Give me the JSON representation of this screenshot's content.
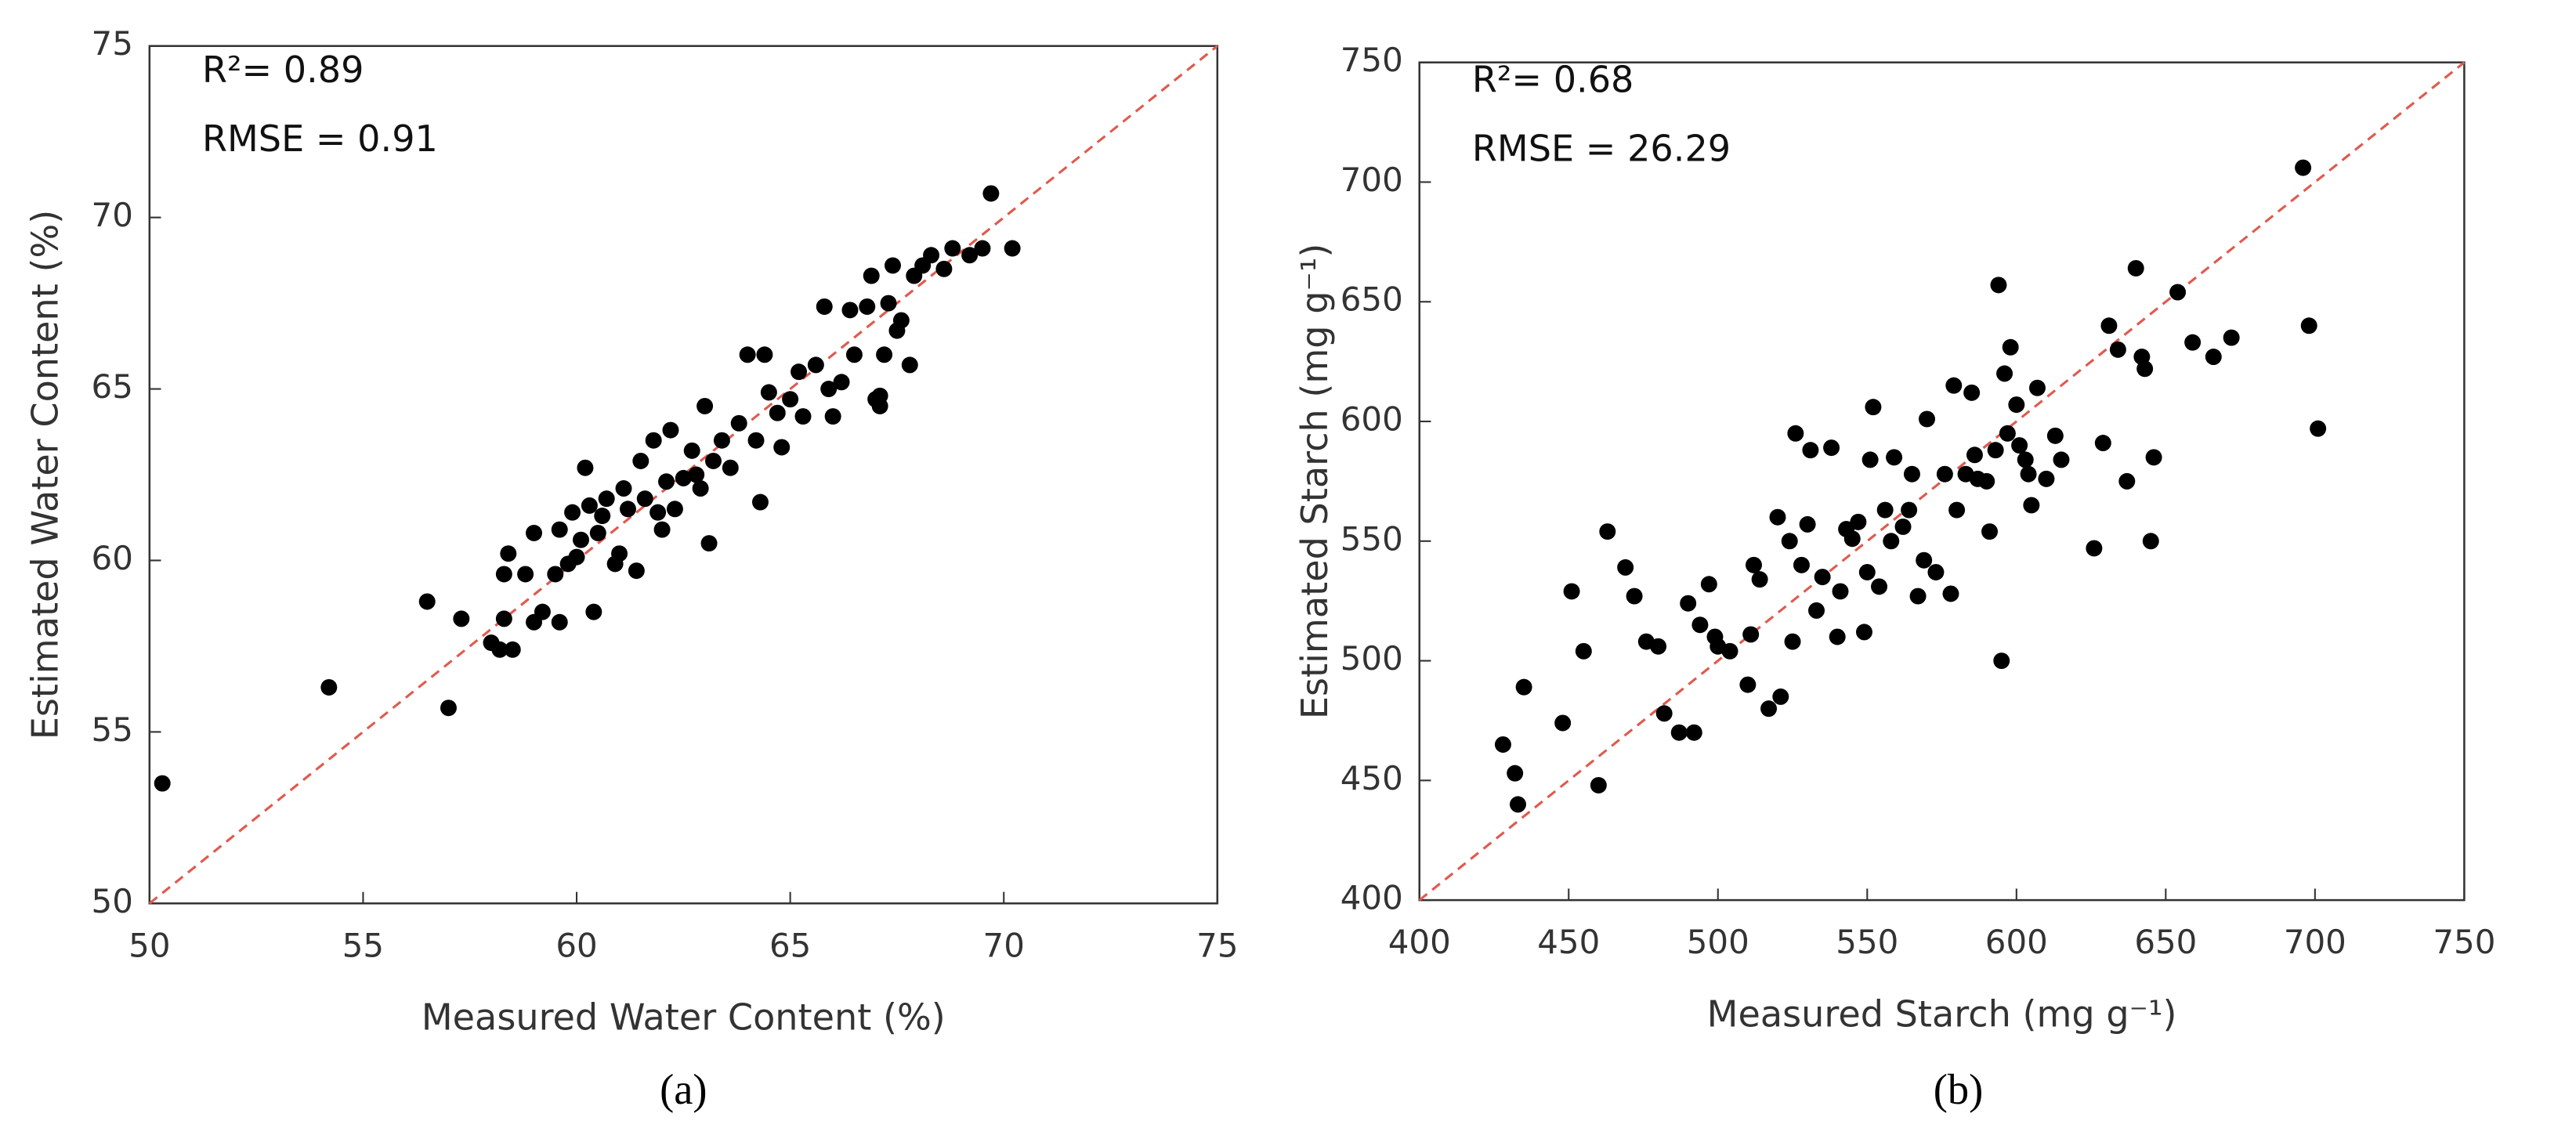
{
  "chart_data": [
    {
      "type": "scatter",
      "caption": "(a)",
      "xlabel": "Measured Water Content (%)",
      "ylabel": "Estimated Water Content (%)",
      "annotations": [
        "R²= 0.89",
        "RMSE = 0.91"
      ],
      "xlim": [
        50,
        75
      ],
      "ylim": [
        50,
        75
      ],
      "xticks": [
        50,
        55,
        60,
        65,
        70,
        75
      ],
      "yticks": [
        50,
        55,
        60,
        65,
        70,
        75
      ],
      "color": "#000000",
      "line_color": "#e05a4f",
      "x": [
        50.3,
        54.2,
        56.5,
        57,
        57.3,
        58,
        58.2,
        58.3,
        58.4,
        58.5,
        58.3,
        58.8,
        59,
        59,
        59.2,
        59.5,
        59.6,
        59.6,
        59.8,
        59.9,
        60,
        60.1,
        60.2,
        60.3,
        60.4,
        60.5,
        60.6,
        60.7,
        60.9,
        61,
        61.1,
        61.2,
        61.4,
        61.5,
        61.6,
        61.8,
        62,
        62.1,
        62.2,
        62.3,
        62.5,
        62.7,
        62.9,
        63,
        63.1,
        63.2,
        63.4,
        63.6,
        63.8,
        64,
        64.2,
        64.3,
        64.4,
        64.5,
        64.7,
        64.8,
        65,
        65.2,
        65.3,
        65.6,
        65.8,
        65.9,
        66,
        66.2,
        66.4,
        66.5,
        66.8,
        66.9,
        67,
        67.1,
        67.2,
        67.3,
        67.4,
        67.5,
        67.6,
        67.8,
        67.9,
        68.1,
        68.3,
        68.6,
        68.8,
        69.2,
        69.5,
        69.7,
        70.2,
        67.1,
        62.8,
        61.9
      ],
      "values": [
        53.5,
        56.3,
        58.8,
        55.7,
        58.3,
        57.6,
        57.4,
        59.6,
        60.2,
        57.4,
        58.3,
        59.6,
        60.8,
        58.2,
        58.5,
        59.6,
        58.2,
        60.9,
        59.9,
        61.4,
        60.1,
        60.6,
        62.7,
        61.6,
        58.5,
        60.8,
        61.3,
        61.8,
        59.9,
        60.2,
        62.1,
        61.5,
        59.7,
        62.9,
        61.8,
        63.5,
        60.9,
        62.3,
        63.8,
        61.5,
        62.4,
        63.2,
        62.1,
        64.5,
        60.5,
        62.9,
        63.5,
        62.7,
        64,
        66,
        63.5,
        61.7,
        66,
        64.9,
        64.3,
        63.3,
        64.7,
        65.5,
        64.2,
        65.7,
        67.4,
        65,
        64.2,
        65.2,
        67.3,
        66,
        67.4,
        68.3,
        64.7,
        64.5,
        66,
        67.5,
        68.6,
        66.7,
        67,
        65.7,
        68.3,
        68.6,
        68.9,
        68.5,
        69.1,
        68.9,
        69.1,
        70.7,
        69.1,
        64.8,
        62.5,
        61.4
      ]
    },
    {
      "type": "scatter",
      "caption": "(b)",
      "xlabel": "Measured Starch (mg g⁻¹)",
      "ylabel": "Estimated Starch (mg g⁻¹)",
      "annotations": [
        "R²= 0.68",
        "RMSE = 26.29"
      ],
      "xlim": [
        400,
        750
      ],
      "ylim": [
        400,
        750
      ],
      "xticks": [
        400,
        450,
        500,
        550,
        600,
        650,
        700,
        750
      ],
      "yticks": [
        400,
        450,
        500,
        550,
        600,
        650,
        700,
        750
      ],
      "color": "#000000",
      "line_color": "#e05a4f",
      "x": [
        428,
        432,
        433,
        435,
        448,
        451,
        455,
        460,
        463,
        469,
        472,
        476,
        480,
        482,
        487,
        490,
        492,
        494,
        497,
        499,
        500,
        504,
        510,
        511,
        512,
        514,
        517,
        520,
        521,
        524,
        525,
        526,
        528,
        530,
        531,
        533,
        535,
        538,
        540,
        541,
        543,
        545,
        547,
        549,
        550,
        551,
        552,
        554,
        556,
        558,
        559,
        562,
        565,
        567,
        569,
        570,
        573,
        576,
        578,
        579,
        580,
        583,
        585,
        587,
        590,
        591,
        593,
        594,
        595,
        596,
        598,
        600,
        601,
        603,
        604,
        605,
        607,
        610,
        613,
        615,
        626,
        629,
        631,
        634,
        637,
        640,
        642,
        643,
        645,
        646,
        654,
        659,
        666,
        672,
        696,
        698,
        701,
        586,
        597,
        564
      ],
      "values": [
        465,
        453,
        440,
        489,
        474,
        529,
        504,
        448,
        554,
        539,
        527,
        508,
        506,
        478,
        470,
        524,
        470,
        515,
        532,
        510,
        506,
        504,
        490,
        511,
        540,
        534,
        480,
        560,
        485,
        550,
        508,
        595,
        540,
        557,
        588,
        521,
        535,
        589,
        510,
        529,
        555,
        551,
        558,
        512,
        537,
        584,
        606,
        531,
        563,
        550,
        585,
        556,
        578,
        527,
        542,
        601,
        537,
        578,
        528,
        615,
        563,
        578,
        612,
        576,
        575,
        554,
        588,
        657,
        500,
        620,
        631,
        607,
        590,
        584,
        578,
        565,
        614,
        576,
        594,
        584,
        547,
        591,
        640,
        630,
        575,
        664,
        627,
        622,
        550,
        585,
        654,
        633,
        627,
        635,
        706,
        640,
        597,
        586,
        595,
        563
      ]
    }
  ]
}
